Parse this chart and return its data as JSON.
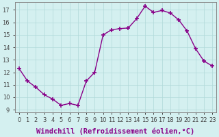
{
  "x": [
    0,
    1,
    2,
    3,
    4,
    5,
    6,
    7,
    8,
    9,
    10,
    11,
    12,
    13,
    14,
    15,
    16,
    17,
    18,
    19,
    20,
    21,
    22,
    23
  ],
  "y": [
    12.3,
    11.3,
    10.8,
    10.2,
    9.85,
    9.35,
    9.5,
    9.35,
    11.3,
    12.0,
    15.0,
    15.4,
    15.5,
    15.55,
    16.3,
    17.3,
    16.8,
    16.95,
    16.75,
    16.2,
    15.3,
    13.9,
    12.9,
    12.5
  ],
  "line_color": "#880088",
  "marker": "+",
  "marker_size": 4,
  "marker_linewidth": 1.2,
  "xlabel": "Windchill (Refroidissement éolien,°C)",
  "xlabel_fontsize": 7.5,
  "ylabel_ticks": [
    9,
    10,
    11,
    12,
    13,
    14,
    15,
    16,
    17
  ],
  "xticks": [
    0,
    1,
    2,
    3,
    4,
    5,
    6,
    7,
    8,
    9,
    10,
    11,
    12,
    13,
    14,
    15,
    16,
    17,
    18,
    19,
    20,
    21,
    22,
    23
  ],
  "xlim": [
    -0.5,
    23.5
  ],
  "ylim": [
    8.8,
    17.6
  ],
  "background_color": "#d4f0f0",
  "grid_color": "#b0d8d8",
  "tick_fontsize": 6.0,
  "linewidth": 1.0
}
